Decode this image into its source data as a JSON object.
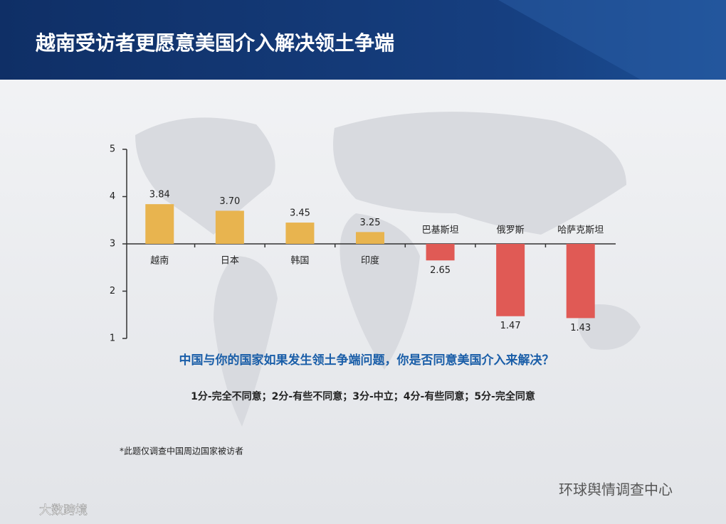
{
  "chart_data": {
    "type": "bar",
    "title": "越南受访者更愿意美国介入解决领土争端",
    "question": "中国与你的国家如果发生领土争端问题，你是否同意美国介入来解决？",
    "scale_note": "1分-完全不同意；2分-有些不同意；3分-中立；4分-有些同意；5分-完全同意",
    "footnote": "*此题仅调查中国周边国家被访者",
    "watermarks": [
      "环球舆情调查中心",
      "大数跨境"
    ],
    "categories": [
      "越南",
      "日本",
      "韩国",
      "印度",
      "巴基斯坦",
      "俄罗斯",
      "哈萨克斯坦"
    ],
    "values": [
      3.84,
      3.7,
      3.45,
      3.25,
      2.65,
      1.47,
      1.43
    ],
    "value_labels": [
      "3.84",
      "3.70",
      "3.45",
      "3.25",
      "2.65",
      "1.47",
      "1.43"
    ],
    "baseline": 3,
    "color_above": "#e8b44f",
    "color_below": "#e05a55",
    "ylim": [
      1,
      5
    ],
    "yticks": [
      1,
      2,
      3,
      4,
      5
    ]
  }
}
